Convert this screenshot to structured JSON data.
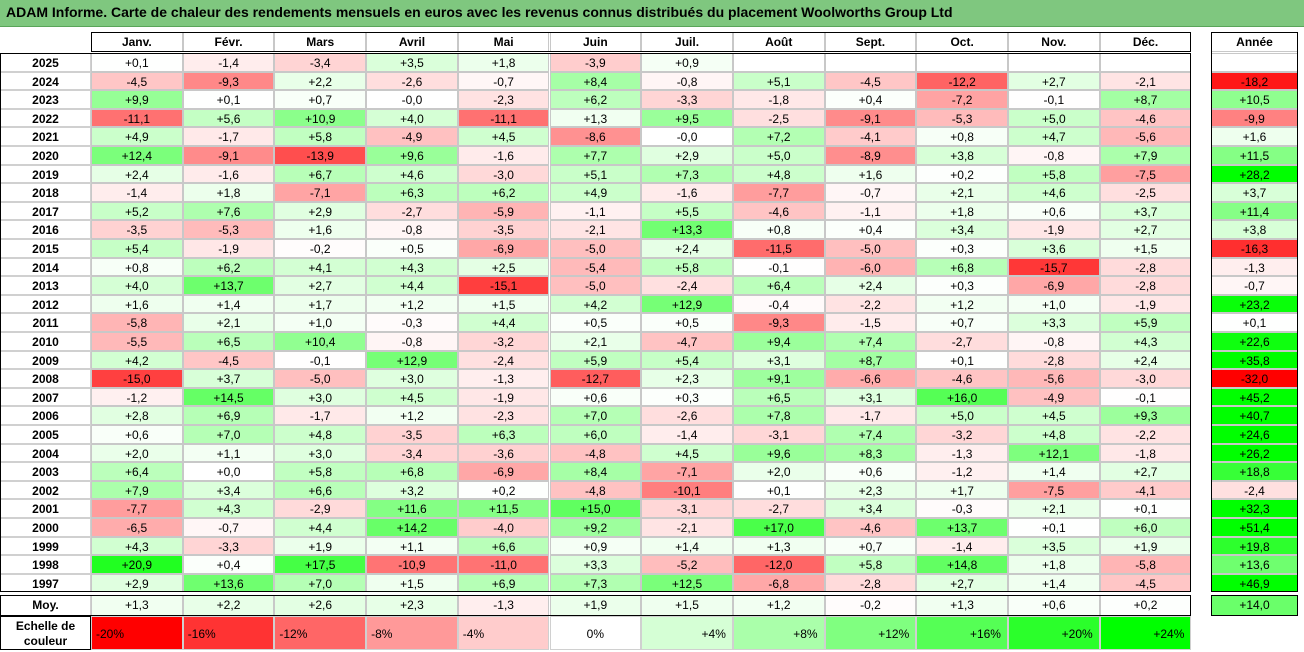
{
  "title": "ADAM Informe. Carte de chaleur des rendements mensuels en euros avec les revenus connus distribués du placement Woolworths Group Ltd",
  "colors": {
    "title_bg": "#7fc77f",
    "negative": "#ff0000",
    "positive": "#00ff00",
    "neutral": "#ffffff"
  },
  "chart_data": {
    "type": "heatmap",
    "months": [
      "Janv.",
      "Févr.",
      "Mars",
      "Avril",
      "Mai",
      "Juin",
      "Juil.",
      "Août",
      "Sept.",
      "Oct.",
      "Nov.",
      "Déc."
    ],
    "year_header": "Année",
    "rows": [
      {
        "year": "2025",
        "months": [
          "+0,1",
          "-1,4",
          "-3,4",
          "+3,5",
          "+1,8",
          "-3,9",
          "+0,9",
          "",
          "",
          "",
          "",
          ""
        ],
        "annual": ""
      },
      {
        "year": "2024",
        "months": [
          "-4,5",
          "-9,3",
          "+2,2",
          "-2,6",
          "-0,7",
          "+8,4",
          "-0,8",
          "+5,1",
          "-4,5",
          "-12,2",
          "+2,7",
          "-2,1"
        ],
        "annual": "-18,2"
      },
      {
        "year": "2023",
        "months": [
          "+9,9",
          "+0,1",
          "+0,7",
          "-0,0",
          "-2,3",
          "+6,2",
          "-3,3",
          "-1,8",
          "+0,4",
          "-7,2",
          "-0,1",
          "+8,7"
        ],
        "annual": "+10,5"
      },
      {
        "year": "2022",
        "months": [
          "-11,1",
          "+5,6",
          "+10,9",
          "+4,0",
          "-11,1",
          "+1,3",
          "+9,5",
          "-2,5",
          "-9,1",
          "-5,3",
          "+5,0",
          "-4,6"
        ],
        "annual": "-9,9"
      },
      {
        "year": "2021",
        "months": [
          "+4,9",
          "-1,7",
          "+5,8",
          "-4,9",
          "+4,5",
          "-8,6",
          "-0,0",
          "+7,2",
          "-4,1",
          "+0,8",
          "+4,7",
          "-5,6"
        ],
        "annual": "+1,6"
      },
      {
        "year": "2020",
        "months": [
          "+12,4",
          "-9,1",
          "-13,9",
          "+9,6",
          "-1,6",
          "+7,7",
          "+2,9",
          "+5,0",
          "-8,9",
          "+3,8",
          "-0,8",
          "+7,9"
        ],
        "annual": "+11,5"
      },
      {
        "year": "2019",
        "months": [
          "+2,4",
          "-1,6",
          "+6,7",
          "+4,6",
          "-3,0",
          "+5,1",
          "+7,3",
          "+4,8",
          "+1,6",
          "+0,2",
          "+5,8",
          "-7,5"
        ],
        "annual": "+28,2"
      },
      {
        "year": "2018",
        "months": [
          "-1,4",
          "+1,8",
          "-7,1",
          "+6,3",
          "+6,2",
          "+4,9",
          "-1,6",
          "-7,7",
          "-0,7",
          "+2,1",
          "+4,6",
          "-2,5"
        ],
        "annual": "+3,7"
      },
      {
        "year": "2017",
        "months": [
          "+5,2",
          "+7,6",
          "+2,9",
          "-2,7",
          "-5,9",
          "-1,1",
          "+5,5",
          "-4,6",
          "-1,1",
          "+1,8",
          "+0,6",
          "+3,7"
        ],
        "annual": "+11,4"
      },
      {
        "year": "2016",
        "months": [
          "-3,5",
          "-5,3",
          "+1,6",
          "-0,8",
          "-3,5",
          "-2,1",
          "+13,3",
          "+0,8",
          "+0,4",
          "+3,4",
          "-1,9",
          "+2,7"
        ],
        "annual": "+3,8"
      },
      {
        "year": "2015",
        "months": [
          "+5,4",
          "-1,9",
          "-0,2",
          "+0,5",
          "-6,9",
          "-5,0",
          "+2,4",
          "-11,5",
          "-5,0",
          "+0,3",
          "+3,6",
          "+1,5"
        ],
        "annual": "-16,3"
      },
      {
        "year": "2014",
        "months": [
          "+0,8",
          "+6,2",
          "+4,1",
          "+4,3",
          "+2,5",
          "-5,4",
          "+5,8",
          "-0,1",
          "-6,0",
          "+6,8",
          "-15,7",
          "-2,8"
        ],
        "annual": "-1,3"
      },
      {
        "year": "2013",
        "months": [
          "+4,0",
          "+13,7",
          "+2,7",
          "+4,4",
          "-15,1",
          "-5,0",
          "-2,4",
          "+6,4",
          "+2,4",
          "+0,3",
          "-6,9",
          "-2,8"
        ],
        "annual": "-0,7"
      },
      {
        "year": "2012",
        "months": [
          "+1,6",
          "+1,4",
          "+1,7",
          "+1,2",
          "+1,5",
          "+4,2",
          "+12,9",
          "-0,4",
          "-2,2",
          "+1,2",
          "+1,0",
          "-1,9"
        ],
        "annual": "+23,2"
      },
      {
        "year": "2011",
        "months": [
          "-5,8",
          "+2,1",
          "+1,0",
          "-0,3",
          "+4,4",
          "+0,5",
          "+0,5",
          "-9,3",
          "-1,5",
          "+0,7",
          "+3,3",
          "+5,9"
        ],
        "annual": "+0,1"
      },
      {
        "year": "2010",
        "months": [
          "-5,5",
          "+6,5",
          "+10,4",
          "-0,8",
          "-3,2",
          "+2,1",
          "-4,7",
          "+9,4",
          "+7,4",
          "-2,7",
          "-0,8",
          "+4,3"
        ],
        "annual": "+22,6"
      },
      {
        "year": "2009",
        "months": [
          "+4,2",
          "-4,5",
          "-0,1",
          "+12,9",
          "-2,4",
          "+5,9",
          "+5,4",
          "+3,1",
          "+8,7",
          "+0,1",
          "-2,8",
          "+2,4"
        ],
        "annual": "+35,8"
      },
      {
        "year": "2008",
        "months": [
          "-15,0",
          "+3,7",
          "-5,0",
          "+3,0",
          "-1,3",
          "-12,7",
          "+2,3",
          "+9,1",
          "-6,6",
          "-4,6",
          "-5,6",
          "-3,0"
        ],
        "annual": "-32,0"
      },
      {
        "year": "2007",
        "months": [
          "-1,2",
          "+14,5",
          "+3,0",
          "+4,5",
          "-1,9",
          "+0,6",
          "+0,3",
          "+6,5",
          "+3,1",
          "+16,0",
          "-4,9",
          "-0,1"
        ],
        "annual": "+45,2"
      },
      {
        "year": "2006",
        "months": [
          "+2,8",
          "+6,9",
          "-1,7",
          "+1,2",
          "-2,3",
          "+7,0",
          "-2,6",
          "+7,8",
          "-1,7",
          "+5,0",
          "+4,5",
          "+9,3"
        ],
        "annual": "+40,7"
      },
      {
        "year": "2005",
        "months": [
          "+0,6",
          "+7,0",
          "+4,8",
          "-3,5",
          "+6,3",
          "+6,0",
          "-1,4",
          "-3,1",
          "+7,4",
          "-3,2",
          "+4,8",
          "-2,2"
        ],
        "annual": "+24,6"
      },
      {
        "year": "2004",
        "months": [
          "+2,0",
          "+1,1",
          "+3,0",
          "-3,4",
          "-3,6",
          "-4,8",
          "+4,5",
          "+9,6",
          "+8,3",
          "-1,3",
          "+12,1",
          "-1,8"
        ],
        "annual": "+26,2"
      },
      {
        "year": "2003",
        "months": [
          "+6,4",
          "+0,0",
          "+5,8",
          "+6,8",
          "-6,9",
          "+8,4",
          "-7,1",
          "+2,0",
          "+0,6",
          "-1,2",
          "+1,4",
          "+2,7"
        ],
        "annual": "+18,8"
      },
      {
        "year": "2002",
        "months": [
          "+7,9",
          "+3,4",
          "+6,6",
          "+3,2",
          "+0,2",
          "-4,8",
          "-10,1",
          "+0,1",
          "+2,3",
          "+1,7",
          "-7,5",
          "-4,1"
        ],
        "annual": "-2,4"
      },
      {
        "year": "2001",
        "months": [
          "-7,7",
          "+4,3",
          "-2,9",
          "+11,6",
          "+11,5",
          "+15,0",
          "-3,1",
          "-2,7",
          "+3,4",
          "-0,3",
          "+2,1",
          "+0,1"
        ],
        "annual": "+32,3"
      },
      {
        "year": "2000",
        "months": [
          "-6,5",
          "-0,7",
          "+4,4",
          "+14,2",
          "-4,0",
          "+9,2",
          "-2,1",
          "+17,0",
          "-4,6",
          "+13,7",
          "+0,1",
          "+6,0"
        ],
        "annual": "+51,4"
      },
      {
        "year": "1999",
        "months": [
          "+4,3",
          "-3,3",
          "+1,9",
          "+1,1",
          "+6,6",
          "+0,9",
          "+1,4",
          "+1,3",
          "+0,7",
          "-1,4",
          "+3,5",
          "+1,9"
        ],
        "annual": "+19,8"
      },
      {
        "year": "1998",
        "months": [
          "+20,9",
          "+0,4",
          "+17,5",
          "-10,9",
          "-11,0",
          "+3,3",
          "-5,2",
          "-12,0",
          "+5,8",
          "+14,8",
          "+1,8",
          "-5,8"
        ],
        "annual": "+13,6"
      },
      {
        "year": "1997",
        "months": [
          "+2,9",
          "+13,6",
          "+7,0",
          "+1,5",
          "+6,9",
          "+7,3",
          "+12,5",
          "-6,8",
          "-2,8",
          "+2,7",
          "+1,4",
          "-4,5"
        ],
        "annual": "+46,9"
      }
    ],
    "average": {
      "label": "Moy.",
      "months": [
        "+1,3",
        "+2,2",
        "+2,6",
        "+2,3",
        "-1,3",
        "+1,9",
        "+1,5",
        "+1,2",
        "-0,2",
        "+1,3",
        "+0,6",
        "+0,2"
      ],
      "annual": "+14,0"
    },
    "scale": {
      "label": "Echelle de couleur",
      "steps": [
        "-20%",
        "-16%",
        "-12%",
        "-8%",
        "-4%",
        "0%",
        "+4%",
        "+8%",
        "+12%",
        "+16%",
        "+20%",
        "+24%"
      ]
    },
    "color_range": [
      -20,
      24
    ]
  }
}
